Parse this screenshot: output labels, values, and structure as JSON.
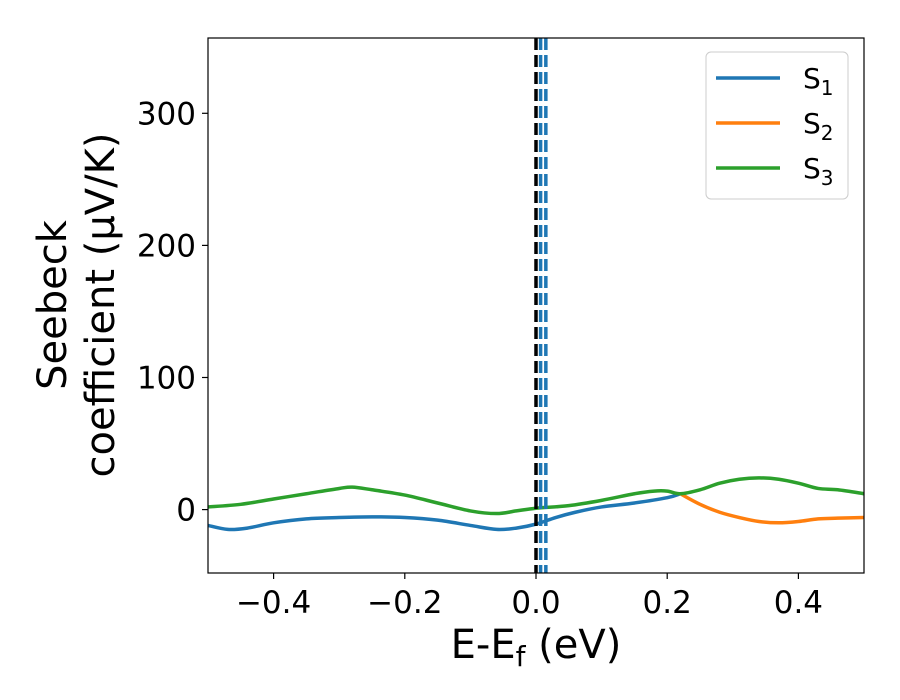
{
  "chart_data": {
    "type": "line",
    "xlabel": {
      "base": "E-E",
      "sub": "f",
      "rest": " (eV)"
    },
    "ylabel": {
      "line1": "Seebeck",
      "line2": "coefficient  (μV/K)"
    },
    "xlim": [
      -0.5,
      0.5
    ],
    "ylim": [
      -48,
      357
    ],
    "xticks": [
      -0.4,
      -0.2,
      0.0,
      0.2,
      0.4
    ],
    "xtick_labels": [
      "−0.4",
      "−0.2",
      "0.0",
      "0.2",
      "0.4"
    ],
    "yticks": [
      0,
      100,
      200,
      300
    ],
    "ytick_labels": [
      "0",
      "100",
      "200",
      "300"
    ],
    "grid": false,
    "legend_position": "top-right",
    "vlines": [
      {
        "x": 0.0,
        "color": "#000000",
        "style": "dashed"
      },
      {
        "x": 0.007,
        "color": "#1f77b4",
        "style": "dashed"
      },
      {
        "x": 0.015,
        "color": "#1f77b4",
        "style": "dashed"
      }
    ],
    "series": [
      {
        "name": "S",
        "sub": "1",
        "color": "#1f77b4",
        "x": [
          -0.5,
          -0.47,
          -0.44,
          -0.4,
          -0.35,
          -0.3,
          -0.25,
          -0.2,
          -0.15,
          -0.1,
          -0.06,
          -0.03,
          0.0,
          0.03,
          0.06,
          0.1,
          0.15,
          0.2,
          0.22
        ],
        "y": [
          -12,
          -15,
          -14,
          -10,
          -7,
          -6,
          -5.5,
          -6,
          -8,
          -12,
          -15,
          -14,
          -11,
          -6,
          -2,
          2,
          5,
          9,
          12
        ]
      },
      {
        "name": "S",
        "sub": "2",
        "color": "#ff7f0e",
        "x": [
          0.22,
          0.25,
          0.28,
          0.31,
          0.34,
          0.37,
          0.4,
          0.43,
          0.46,
          0.5
        ],
        "y": [
          12,
          4,
          -2,
          -6,
          -9,
          -10,
          -9,
          -7,
          -6.5,
          -6
        ]
      },
      {
        "name": "S",
        "sub": "3",
        "color": "#2ca02c",
        "x": [
          -0.5,
          -0.45,
          -0.4,
          -0.35,
          -0.3,
          -0.28,
          -0.25,
          -0.2,
          -0.15,
          -0.1,
          -0.06,
          -0.03,
          0.0,
          0.05,
          0.1,
          0.15,
          0.18,
          0.2,
          0.22,
          0.25,
          0.28,
          0.31,
          0.34,
          0.37,
          0.4,
          0.43,
          0.46,
          0.5
        ],
        "y": [
          2,
          4,
          8,
          12,
          16,
          17,
          15,
          11,
          5,
          -1,
          -3,
          -1,
          1,
          3,
          7,
          12,
          14,
          14,
          12,
          15,
          20,
          23,
          24,
          23,
          20,
          16,
          15,
          12
        ]
      }
    ]
  }
}
